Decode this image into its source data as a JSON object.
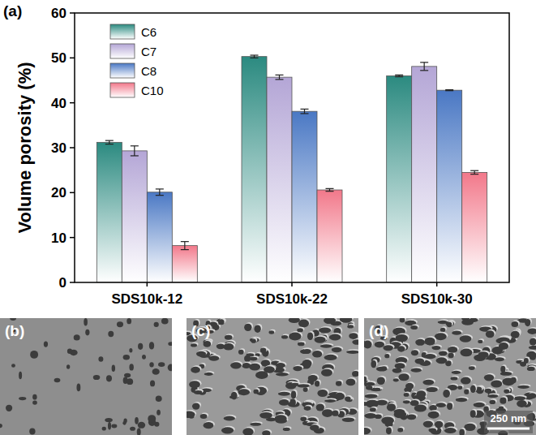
{
  "chart_data": {
    "type": "bar",
    "y_label": "Volume porosity (%)",
    "categories": [
      "SDS10k-12",
      "SDS10k-22",
      "SDS10k-30"
    ],
    "series": [
      {
        "name": "C6",
        "color": "#2b8a80",
        "values": [
          31.2,
          50.3,
          46.0
        ],
        "errors": [
          0.4,
          0.3,
          0.2
        ]
      },
      {
        "name": "C7",
        "color": "#b4a6d6",
        "values": [
          29.3,
          45.7,
          48.1
        ],
        "errors": [
          1.1,
          0.5,
          0.9
        ]
      },
      {
        "name": "C8",
        "color": "#4a78c4",
        "values": [
          20.1,
          38.1,
          42.8
        ],
        "errors": [
          0.7,
          0.5,
          0.1
        ]
      },
      {
        "name": "C10",
        "color": "#f2788a",
        "values": [
          8.2,
          20.6,
          24.5
        ],
        "errors": [
          0.9,
          0.3,
          0.4
        ]
      }
    ],
    "ylim": [
      0,
      60
    ],
    "yticks": [
      0,
      10,
      20,
      30,
      40,
      50,
      60
    ],
    "grid": false,
    "legend": "upper left"
  },
  "panel_labels": [
    "(a)",
    "(b)",
    "(c)",
    "(d)"
  ],
  "scale_bar": "250 nm"
}
